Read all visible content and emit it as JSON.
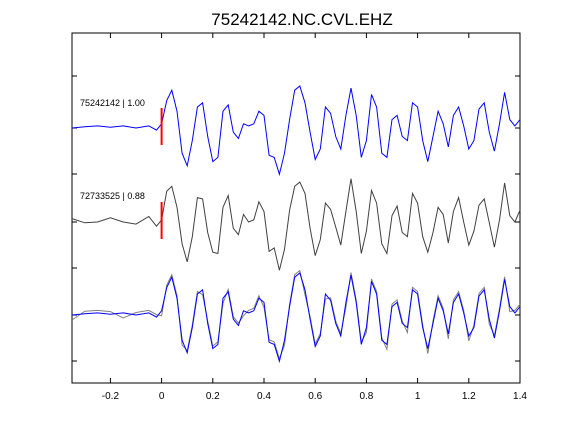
{
  "chart_data": {
    "type": "line",
    "title": "75242142.NC.CVL.EHZ",
    "xlabel": "",
    "ylabel": "",
    "xlim": [
      -0.35,
      1.4
    ],
    "x_ticks": [
      -0.2,
      0,
      0.2,
      0.4,
      0.6,
      0.8,
      1,
      1.2,
      1.4
    ],
    "x_tick_labels": [
      "-0.2",
      "0",
      "0.2",
      "0.4",
      "0.6",
      "0.8",
      "1",
      "1.2",
      "1.4"
    ],
    "grid": false,
    "pick_time": 0,
    "traces": [
      {
        "label": "75242142 | 1.00",
        "color": "#0000ff",
        "panel": 1
      },
      {
        "label": "72733525 | 0.88",
        "color": "#404040",
        "panel": 2
      },
      {
        "label": "",
        "color": "#0000ff",
        "panel": 3,
        "overlay": true
      }
    ],
    "pick_color": "#ff0000",
    "waveform_points": [
      [
        -0.35,
        0.0
      ],
      [
        -0.3,
        0.03
      ],
      [
        -0.25,
        0.05
      ],
      [
        -0.2,
        0.02
      ],
      [
        -0.15,
        0.05
      ],
      [
        -0.1,
        0.0
      ],
      [
        -0.05,
        0.05
      ],
      [
        -0.02,
        -0.05
      ],
      [
        0.0,
        0.1
      ],
      [
        0.02,
        0.65
      ],
      [
        0.04,
        0.9
      ],
      [
        0.06,
        0.4
      ],
      [
        0.08,
        -0.6
      ],
      [
        0.1,
        -0.9
      ],
      [
        0.12,
        -0.3
      ],
      [
        0.14,
        0.5
      ],
      [
        0.16,
        0.6
      ],
      [
        0.18,
        -0.2
      ],
      [
        0.2,
        -0.8
      ],
      [
        0.22,
        -0.7
      ],
      [
        0.24,
        0.4
      ],
      [
        0.26,
        0.55
      ],
      [
        0.28,
        -0.1
      ],
      [
        0.3,
        -0.25
      ],
      [
        0.32,
        0.1
      ],
      [
        0.34,
        0.05
      ],
      [
        0.36,
        0.1
      ],
      [
        0.38,
        0.4
      ],
      [
        0.4,
        0.3
      ],
      [
        0.42,
        -0.65
      ],
      [
        0.44,
        -0.7
      ],
      [
        0.46,
        -1.1
      ],
      [
        0.48,
        -0.6
      ],
      [
        0.5,
        0.2
      ],
      [
        0.52,
        0.9
      ],
      [
        0.54,
        1.0
      ],
      [
        0.56,
        0.6
      ],
      [
        0.58,
        -0.1
      ],
      [
        0.6,
        -0.75
      ],
      [
        0.62,
        -0.5
      ],
      [
        0.64,
        0.5
      ],
      [
        0.66,
        0.35
      ],
      [
        0.68,
        -0.2
      ],
      [
        0.7,
        -0.5
      ],
      [
        0.72,
        0.3
      ],
      [
        0.74,
        0.95
      ],
      [
        0.76,
        0.3
      ],
      [
        0.78,
        -0.7
      ],
      [
        0.8,
        -0.3
      ],
      [
        0.82,
        0.8
      ],
      [
        0.84,
        0.5
      ],
      [
        0.86,
        -0.6
      ],
      [
        0.88,
        -0.7
      ],
      [
        0.9,
        0.2
      ],
      [
        0.92,
        0.3
      ],
      [
        0.94,
        -0.2
      ],
      [
        0.96,
        -0.3
      ],
      [
        0.98,
        0.6
      ],
      [
        1.0,
        0.5
      ],
      [
        1.02,
        -0.3
      ],
      [
        1.04,
        -0.8
      ],
      [
        1.06,
        -0.2
      ],
      [
        1.08,
        0.4
      ],
      [
        1.1,
        0.1
      ],
      [
        1.12,
        -0.45
      ],
      [
        1.14,
        0.3
      ],
      [
        1.16,
        0.5
      ],
      [
        1.18,
        0.05
      ],
      [
        1.2,
        -0.5
      ],
      [
        1.22,
        -0.3
      ],
      [
        1.24,
        0.45
      ],
      [
        1.26,
        0.6
      ],
      [
        1.28,
        -0.1
      ],
      [
        1.3,
        -0.55
      ],
      [
        1.32,
        0.1
      ],
      [
        1.34,
        0.85
      ],
      [
        1.36,
        0.2
      ],
      [
        1.38,
        0.05
      ],
      [
        1.4,
        0.2
      ]
    ]
  }
}
